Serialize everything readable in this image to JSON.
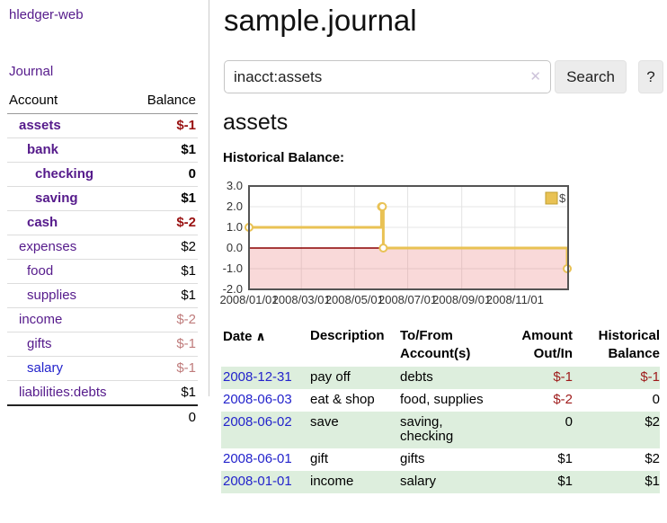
{
  "header": {
    "title": "sample.journal"
  },
  "sidebar": {
    "brand": "hledger-web",
    "journal_label": "Journal",
    "accounts": {
      "header_account": "Account",
      "header_balance": "Balance",
      "rows": [
        {
          "name": "assets",
          "indent": 1,
          "bold": true,
          "balance": "$-1",
          "neg": "strong"
        },
        {
          "name": "bank",
          "indent": 2,
          "bold": true,
          "balance": "$1"
        },
        {
          "name": "checking",
          "indent": 3,
          "bold": true,
          "balance": "0"
        },
        {
          "name": "saving",
          "indent": 3,
          "bold": true,
          "balance": "$1"
        },
        {
          "name": "cash",
          "indent": 2,
          "bold": true,
          "balance": "$-2",
          "neg": "strong"
        },
        {
          "name": "expenses",
          "indent": 1,
          "bold": false,
          "balance": "$2"
        },
        {
          "name": "food",
          "indent": 2,
          "bold": false,
          "balance": "$1"
        },
        {
          "name": "supplies",
          "indent": 2,
          "bold": false,
          "balance": "$1"
        },
        {
          "name": "income",
          "indent": 1,
          "bold": false,
          "balance": "$-2",
          "neg": "muted"
        },
        {
          "name": "gifts",
          "indent": 2,
          "bold": false,
          "balance": "$-1",
          "neg": "muted"
        },
        {
          "name": "salary",
          "indent": 2,
          "bold": false,
          "balance": "$-1",
          "neg": "muted",
          "link_style": "unvisited"
        },
        {
          "name": "liabilities:debts",
          "indent": 1,
          "bold": false,
          "balance": "$1"
        }
      ],
      "total": "0"
    }
  },
  "search": {
    "value": "inacct:assets",
    "clear_icon": "✕",
    "button_label": "Search",
    "help_label": "?"
  },
  "account_view": {
    "heading": "assets",
    "chart_label": "Historical Balance:"
  },
  "chart_data": {
    "type": "line",
    "step": true,
    "title": "Historical Balance:",
    "series": [
      {
        "name": "$",
        "color": "#e9c254",
        "points": [
          [
            "2008-01-01",
            1
          ],
          [
            "2008-06-01",
            2
          ],
          [
            "2008-06-02",
            2
          ],
          [
            "2008-06-03",
            0
          ],
          [
            "2008-12-31",
            -1
          ]
        ]
      }
    ],
    "x_ticks": [
      {
        "label": "2008/01/01",
        "date": "2008-01-01"
      },
      {
        "label": "2008/03/01",
        "date": "2008-03-01"
      },
      {
        "label": "2008/05/01",
        "date": "2008-05-01"
      },
      {
        "label": "2008/07/01",
        "date": "2008-07-01"
      },
      {
        "label": "2008/09/01",
        "date": "2008-09-01"
      },
      {
        "label": "2008/11/01",
        "date": "2008-11-01"
      }
    ],
    "y_ticks": [
      "3.0",
      "2.0",
      "1.0",
      "0.0",
      "-1.0",
      "-2.0"
    ],
    "ylim": [
      -2,
      3
    ],
    "xlim": [
      "2008-01-01",
      "2009-01-01"
    ],
    "legend": {
      "label": "$",
      "position": "top-right"
    },
    "grid": true,
    "zero_line_color": "#8b0000",
    "negative_fill": "rgba(235,120,120,0.28)"
  },
  "register_table": {
    "headers": [
      {
        "lines": [
          "Date"
        ],
        "sort_icon": "∧"
      },
      {
        "lines": [
          "Description"
        ]
      },
      {
        "lines": [
          "To/From",
          "Account(s)"
        ]
      },
      {
        "lines": [
          "Amount",
          "Out/In"
        ],
        "align": "right"
      },
      {
        "lines": [
          "Historical",
          "Balance"
        ],
        "align": "right"
      }
    ],
    "rows": [
      {
        "date": "2008-12-31",
        "description": "pay off",
        "accounts": "debts",
        "amount": "$-1",
        "amount_neg": true,
        "balance": "$-1",
        "balance_neg": true
      },
      {
        "date": "2008-06-03",
        "description": "eat & shop",
        "accounts": "food, supplies",
        "amount": "$-2",
        "amount_neg": true,
        "balance": "0",
        "balance_neg": false
      },
      {
        "date": "2008-06-02",
        "description": "save",
        "accounts": "saving, checking",
        "amount": "0",
        "amount_neg": false,
        "balance": "$2",
        "balance_neg": false
      },
      {
        "date": "2008-06-01",
        "description": "gift",
        "accounts": "gifts",
        "amount": "$1",
        "amount_neg": false,
        "balance": "$2",
        "balance_neg": false
      },
      {
        "date": "2008-01-01",
        "description": "income",
        "accounts": "salary",
        "amount": "$1",
        "amount_neg": false,
        "balance": "$1",
        "balance_neg": false
      }
    ]
  },
  "colors": {
    "link_purple": "#551a8b",
    "link_blue": "#2323cc",
    "negative_red": "#991111",
    "negative_muted": "#bf7b7b",
    "row_highlight_green": "#ddeedd",
    "chart_gold": "#e9c254",
    "chart_zero_line": "#8b0000",
    "button_gray": "#ececec"
  }
}
